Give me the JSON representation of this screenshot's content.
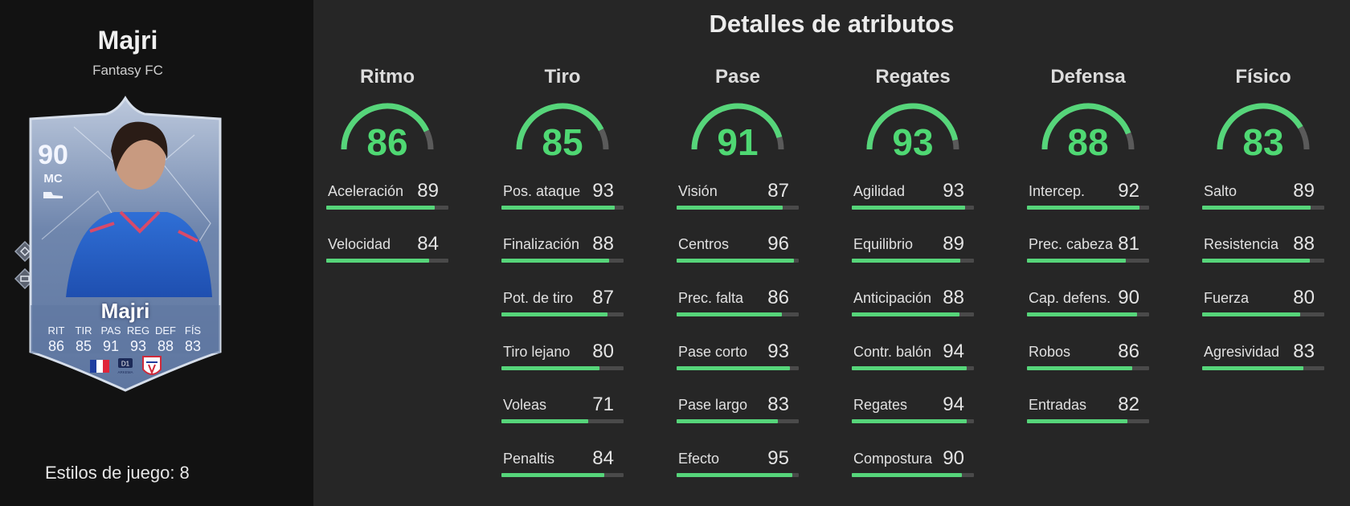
{
  "player": {
    "name": "Majri",
    "club": "Fantasy FC",
    "playstyles_label": "Estilos de juego: 8"
  },
  "card": {
    "rating": "90",
    "position": "MC",
    "name": "Majri",
    "stats": [
      {
        "label": "RIT",
        "value": "86"
      },
      {
        "label": "TIR",
        "value": "85"
      },
      {
        "label": "PAS",
        "value": "91"
      },
      {
        "label": "REG",
        "value": "93"
      },
      {
        "label": "DEF",
        "value": "88"
      },
      {
        "label": "FÍS",
        "value": "83"
      }
    ],
    "league_label": "D1",
    "league_sub": "ARKEMA"
  },
  "section_title": "Detalles de atributos",
  "colors": {
    "accent_green": "#56d57a",
    "bar_track": "#4a4a4a",
    "panel_dark": "#121212",
    "background": "#262626"
  },
  "categories": [
    {
      "name": "Ritmo",
      "value": 86,
      "attributes": [
        {
          "name": "Aceleración",
          "value": 89
        },
        {
          "name": "Velocidad",
          "value": 84
        }
      ]
    },
    {
      "name": "Tiro",
      "value": 85,
      "attributes": [
        {
          "name": "Pos. ataque",
          "value": 93
        },
        {
          "name": "Finalización",
          "value": 88
        },
        {
          "name": "Pot. de tiro",
          "value": 87
        },
        {
          "name": "Tiro lejano",
          "value": 80
        },
        {
          "name": "Voleas",
          "value": 71
        },
        {
          "name": "Penaltis",
          "value": 84
        }
      ]
    },
    {
      "name": "Pase",
      "value": 91,
      "attributes": [
        {
          "name": "Visión",
          "value": 87
        },
        {
          "name": "Centros",
          "value": 96
        },
        {
          "name": "Prec. falta",
          "value": 86
        },
        {
          "name": "Pase corto",
          "value": 93
        },
        {
          "name": "Pase largo",
          "value": 83
        },
        {
          "name": "Efecto",
          "value": 95
        }
      ]
    },
    {
      "name": "Regates",
      "value": 93,
      "attributes": [
        {
          "name": "Agilidad",
          "value": 93
        },
        {
          "name": "Equilibrio",
          "value": 89
        },
        {
          "name": "Anticipación",
          "value": 88
        },
        {
          "name": "Contr. balón",
          "value": 94
        },
        {
          "name": "Regates",
          "value": 94
        },
        {
          "name": "Compostura",
          "value": 90
        }
      ]
    },
    {
      "name": "Defensa",
      "value": 88,
      "attributes": [
        {
          "name": "Intercep.",
          "value": 92
        },
        {
          "name": "Prec. cabeza",
          "value": 81
        },
        {
          "name": "Cap. defens.",
          "value": 90
        },
        {
          "name": "Robos",
          "value": 86
        },
        {
          "name": "Entradas",
          "value": 82
        }
      ]
    },
    {
      "name": "Físico",
      "value": 83,
      "attributes": [
        {
          "name": "Salto",
          "value": 89
        },
        {
          "name": "Resistencia",
          "value": 88
        },
        {
          "name": "Fuerza",
          "value": 80
        },
        {
          "name": "Agresividad",
          "value": 83
        }
      ]
    }
  ]
}
